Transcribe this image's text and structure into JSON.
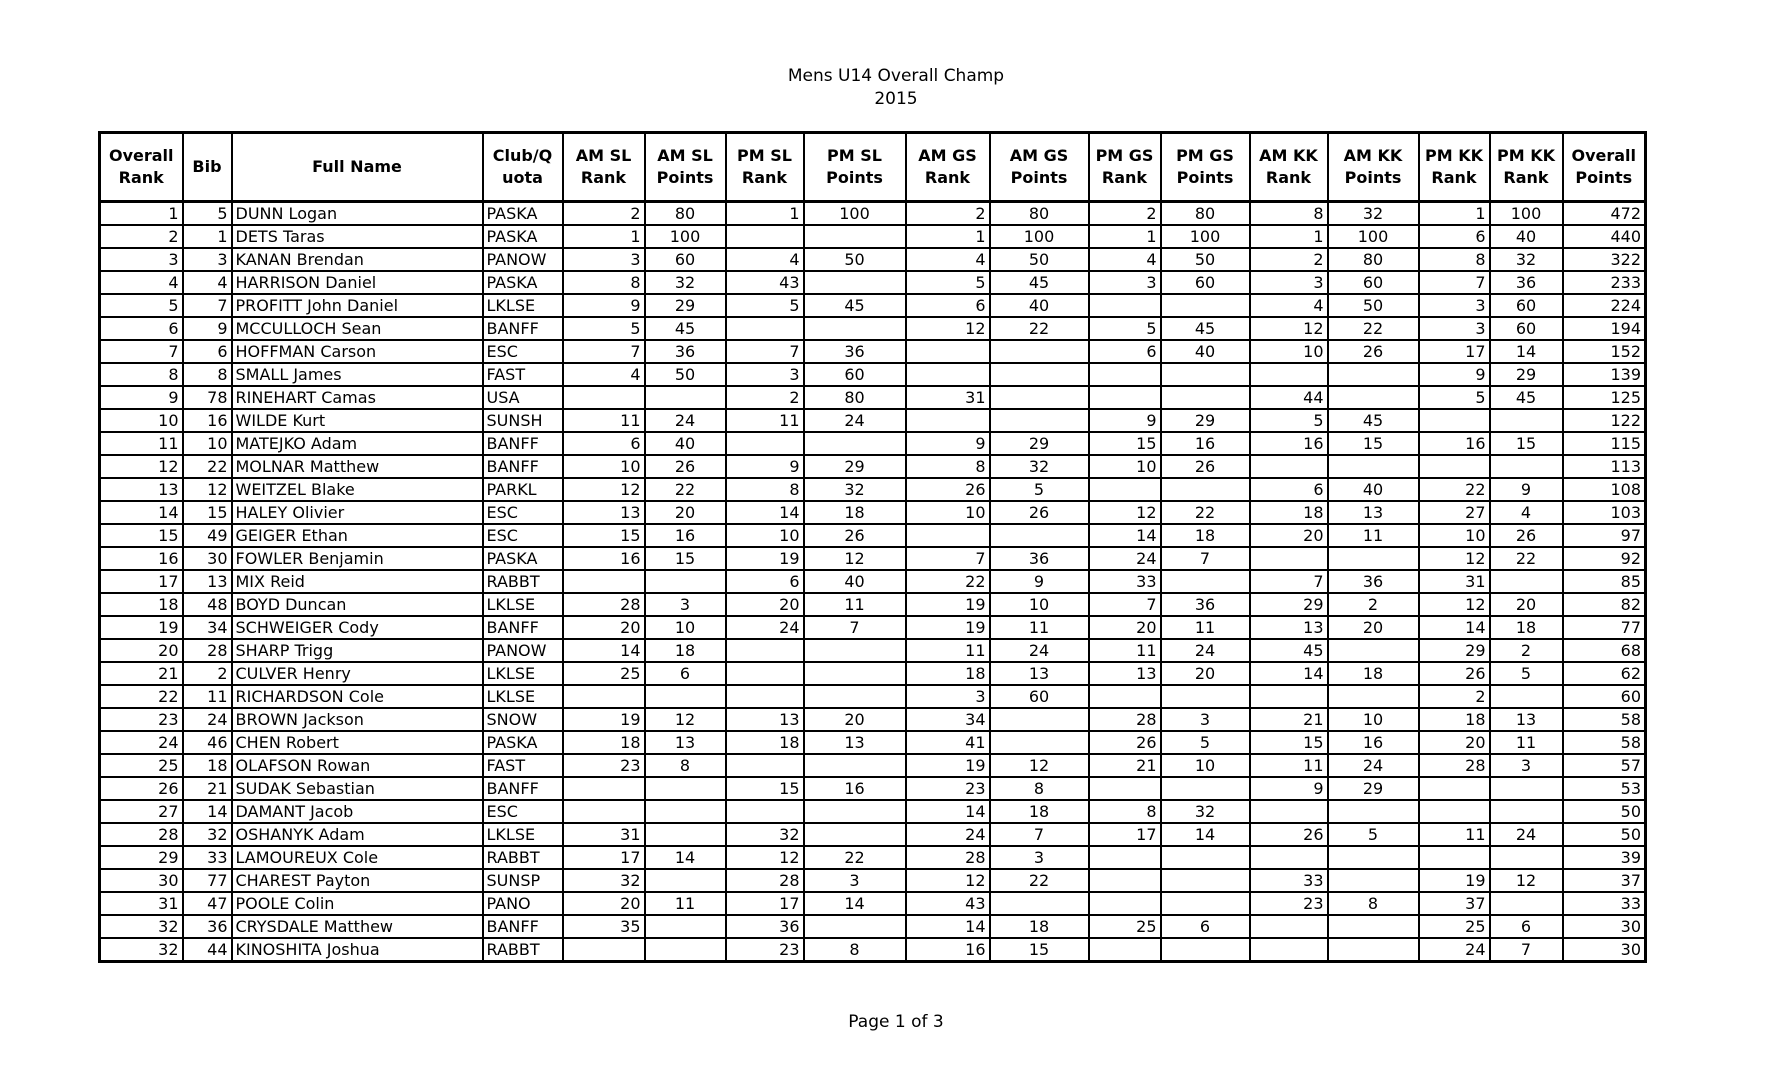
{
  "title": "Mens U14 Overall Champ",
  "year": "2015",
  "footer": "Page 1 of 3",
  "columns": [
    "Overall Rank",
    "Bib",
    "Full Name",
    "Club/Q uota",
    "AM SL Rank",
    "AM SL Points",
    "PM SL Rank",
    "PM SL Points",
    "AM GS Rank",
    "AM GS Points",
    "PM GS Rank",
    "PM GS Points",
    "AM KK Rank",
    "AM KK Points",
    "PM KK Rank",
    "PM KK Rank",
    "Overall Points"
  ],
  "rows": [
    [
      "1",
      "5",
      "DUNN  Logan",
      "PASKA",
      "2",
      "80",
      "1",
      "100",
      "2",
      "80",
      "2",
      "80",
      "8",
      "32",
      "1",
      "100",
      "472"
    ],
    [
      "2",
      "1",
      "DETS  Taras",
      "PASKA",
      "1",
      "100",
      "",
      "",
      "1",
      "100",
      "1",
      "100",
      "1",
      "100",
      "6",
      "40",
      "440"
    ],
    [
      "3",
      "3",
      "KANAN  Brendan",
      "PANOW",
      "3",
      "60",
      "4",
      "50",
      "4",
      "50",
      "4",
      "50",
      "2",
      "80",
      "8",
      "32",
      "322"
    ],
    [
      "4",
      "4",
      "HARRISON  Daniel",
      "PASKA",
      "8",
      "32",
      "43",
      "",
      "5",
      "45",
      "3",
      "60",
      "3",
      "60",
      "7",
      "36",
      "233"
    ],
    [
      "5",
      "7",
      "PROFITT  John Daniel",
      "LKLSE",
      "9",
      "29",
      "5",
      "45",
      "6",
      "40",
      "",
      "",
      "4",
      "50",
      "3",
      "60",
      "224"
    ],
    [
      "6",
      "9",
      "MCCULLOCH  Sean",
      "BANFF",
      "5",
      "45",
      "",
      "",
      "12",
      "22",
      "5",
      "45",
      "12",
      "22",
      "3",
      "60",
      "194"
    ],
    [
      "7",
      "6",
      "HOFFMAN  Carson",
      "ESC",
      "7",
      "36",
      "7",
      "36",
      "",
      "",
      "6",
      "40",
      "10",
      "26",
      "17",
      "14",
      "152"
    ],
    [
      "8",
      "8",
      "SMALL  James",
      "FAST",
      "4",
      "50",
      "3",
      "60",
      "",
      "",
      "",
      "",
      "",
      "",
      "9",
      "29",
      "139"
    ],
    [
      "9",
      "78",
      "RINEHART  Camas",
      "USA",
      "",
      "",
      "2",
      "80",
      "31",
      "",
      "",
      "",
      "44",
      "",
      "5",
      "45",
      "125"
    ],
    [
      "10",
      "16",
      "WILDE  Kurt",
      "SUNSH",
      "11",
      "24",
      "11",
      "24",
      "",
      "",
      "9",
      "29",
      "5",
      "45",
      "",
      "",
      "122"
    ],
    [
      "11",
      "10",
      "MATEJKO  Adam",
      "BANFF",
      "6",
      "40",
      "",
      "",
      "9",
      "29",
      "15",
      "16",
      "16",
      "15",
      "16",
      "15",
      "115"
    ],
    [
      "12",
      "22",
      "MOLNAR  Matthew",
      "BANFF",
      "10",
      "26",
      "9",
      "29",
      "8",
      "32",
      "10",
      "26",
      "",
      "",
      "",
      "",
      "113"
    ],
    [
      "13",
      "12",
      "WEITZEL  Blake",
      "PARKL",
      "12",
      "22",
      "8",
      "32",
      "26",
      "5",
      "",
      "",
      "6",
      "40",
      "22",
      "9",
      "108"
    ],
    [
      "14",
      "15",
      "HALEY  Olivier",
      "ESC",
      "13",
      "20",
      "14",
      "18",
      "10",
      "26",
      "12",
      "22",
      "18",
      "13",
      "27",
      "4",
      "103"
    ],
    [
      "15",
      "49",
      "GEIGER  Ethan",
      "ESC",
      "15",
      "16",
      "10",
      "26",
      "",
      "",
      "14",
      "18",
      "20",
      "11",
      "10",
      "26",
      "97"
    ],
    [
      "16",
      "30",
      "FOWLER  Benjamin",
      "PASKA",
      "16",
      "15",
      "19",
      "12",
      "7",
      "36",
      "24",
      "7",
      "",
      "",
      "12",
      "22",
      "92"
    ],
    [
      "17",
      "13",
      "MIX  Reid",
      "RABBT",
      "",
      "",
      "6",
      "40",
      "22",
      "9",
      "33",
      "",
      "7",
      "36",
      "31",
      "",
      "85"
    ],
    [
      "18",
      "48",
      "BOYD  Duncan",
      "LKLSE",
      "28",
      "3",
      "20",
      "11",
      "19",
      "10",
      "7",
      "36",
      "29",
      "2",
      "12",
      "20",
      "82"
    ],
    [
      "19",
      "34",
      "SCHWEIGER  Cody",
      "BANFF",
      "20",
      "10",
      "24",
      "7",
      "19",
      "11",
      "20",
      "11",
      "13",
      "20",
      "14",
      "18",
      "77"
    ],
    [
      "20",
      "28",
      "SHARP  Trigg",
      "PANOW",
      "14",
      "18",
      "",
      "",
      "11",
      "24",
      "11",
      "24",
      "45",
      "",
      "29",
      "2",
      "68"
    ],
    [
      "21",
      "2",
      "CULVER  Henry",
      "LKLSE",
      "25",
      "6",
      "",
      "",
      "18",
      "13",
      "13",
      "20",
      "14",
      "18",
      "26",
      "5",
      "62"
    ],
    [
      "22",
      "11",
      "RICHARDSON  Cole",
      "LKLSE",
      "",
      "",
      "",
      "",
      "3",
      "60",
      "",
      "",
      "",
      "",
      "2",
      "",
      "60"
    ],
    [
      "23",
      "24",
      "BROWN  Jackson",
      "SNOW",
      "19",
      "12",
      "13",
      "20",
      "34",
      "",
      "28",
      "3",
      "21",
      "10",
      "18",
      "13",
      "58"
    ],
    [
      "24",
      "46",
      "CHEN  Robert",
      "PASKA",
      "18",
      "13",
      "18",
      "13",
      "41",
      "",
      "26",
      "5",
      "15",
      "16",
      "20",
      "11",
      "58"
    ],
    [
      "25",
      "18",
      "OLAFSON  Rowan",
      "FAST",
      "23",
      "8",
      "",
      "",
      "19",
      "12",
      "21",
      "10",
      "11",
      "24",
      "28",
      "3",
      "57"
    ],
    [
      "26",
      "21",
      "SUDAK  Sebastian",
      "BANFF",
      "",
      "",
      "15",
      "16",
      "23",
      "8",
      "",
      "",
      "9",
      "29",
      "",
      "",
      "53"
    ],
    [
      "27",
      "14",
      "DAMANT  Jacob",
      "ESC",
      "",
      "",
      "",
      "",
      "14",
      "18",
      "8",
      "32",
      "",
      "",
      "",
      "",
      "50"
    ],
    [
      "28",
      "32",
      "OSHANYK  Adam",
      "LKLSE",
      "31",
      "",
      "32",
      "",
      "24",
      "7",
      "17",
      "14",
      "26",
      "5",
      "11",
      "24",
      "50"
    ],
    [
      "29",
      "33",
      "LAMOUREUX  Cole",
      "RABBT",
      "17",
      "14",
      "12",
      "22",
      "28",
      "3",
      "",
      "",
      "",
      "",
      "",
      "",
      "39"
    ],
    [
      "30",
      "77",
      "CHAREST  Payton",
      "SUNSP",
      "32",
      "",
      "28",
      "3",
      "12",
      "22",
      "",
      "",
      "33",
      "",
      "19",
      "12",
      "37"
    ],
    [
      "31",
      "47",
      "POOLE  Colin",
      "PANO",
      "20",
      "11",
      "17",
      "14",
      "43",
      "",
      "",
      "",
      "23",
      "8",
      "37",
      "",
      "33"
    ],
    [
      "32",
      "36",
      "CRYSDALE  Matthew",
      "BANFF",
      "35",
      "",
      "36",
      "",
      "14",
      "18",
      "25",
      "6",
      "",
      "",
      "25",
      "6",
      "30"
    ],
    [
      "32",
      "44",
      "KINOSHITA  Joshua",
      "RABBT",
      "",
      "",
      "23",
      "8",
      "16",
      "15",
      "",
      "",
      "",
      "",
      "24",
      "7",
      "30"
    ]
  ]
}
